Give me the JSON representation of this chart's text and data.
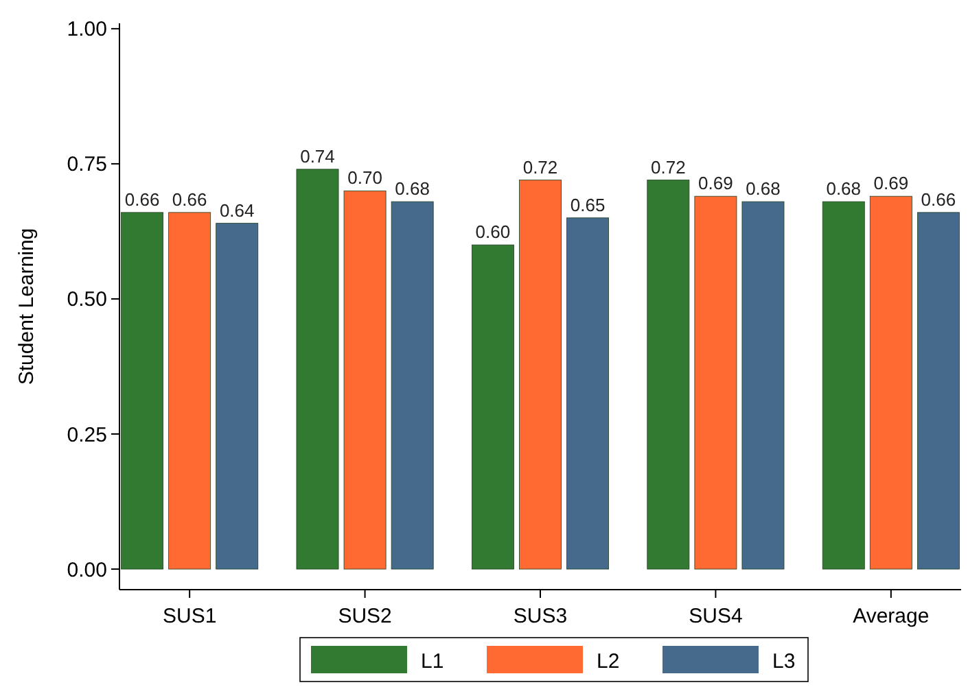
{
  "chart_data": {
    "type": "bar",
    "ylabel": "Student Learning",
    "categories": [
      "SUS1",
      "SUS2",
      "SUS3",
      "SUS4",
      "Average"
    ],
    "series": [
      {
        "name": "L1",
        "color": "#327a32",
        "values": [
          0.66,
          0.74,
          0.6,
          0.72,
          0.68
        ],
        "value_labels": [
          "0.66",
          "0.74",
          "0.60",
          "0.72",
          "0.68"
        ]
      },
      {
        "name": "L2",
        "color": "#ff6a33",
        "values": [
          0.66,
          0.7,
          0.72,
          0.69,
          0.69
        ],
        "value_labels": [
          "0.66",
          "0.70",
          "0.72",
          "0.69",
          "0.69"
        ]
      },
      {
        "name": "L3",
        "color": "#466a8c",
        "values": [
          0.64,
          0.68,
          0.65,
          0.68,
          0.66
        ],
        "value_labels": [
          "0.64",
          "0.68",
          "0.65",
          "0.68",
          "0.66"
        ]
      }
    ],
    "ylim": [
      -0.038,
      1.01
    ],
    "yticks": [
      {
        "value": 0,
        "label": "0.00"
      },
      {
        "value": 0.25,
        "label": "0.25"
      },
      {
        "value": 0.5,
        "label": "0.50"
      },
      {
        "value": 0.75,
        "label": "0.75"
      },
      {
        "value": 1,
        "label": "1.00"
      }
    ],
    "legend": "bottom",
    "grid": false
  }
}
